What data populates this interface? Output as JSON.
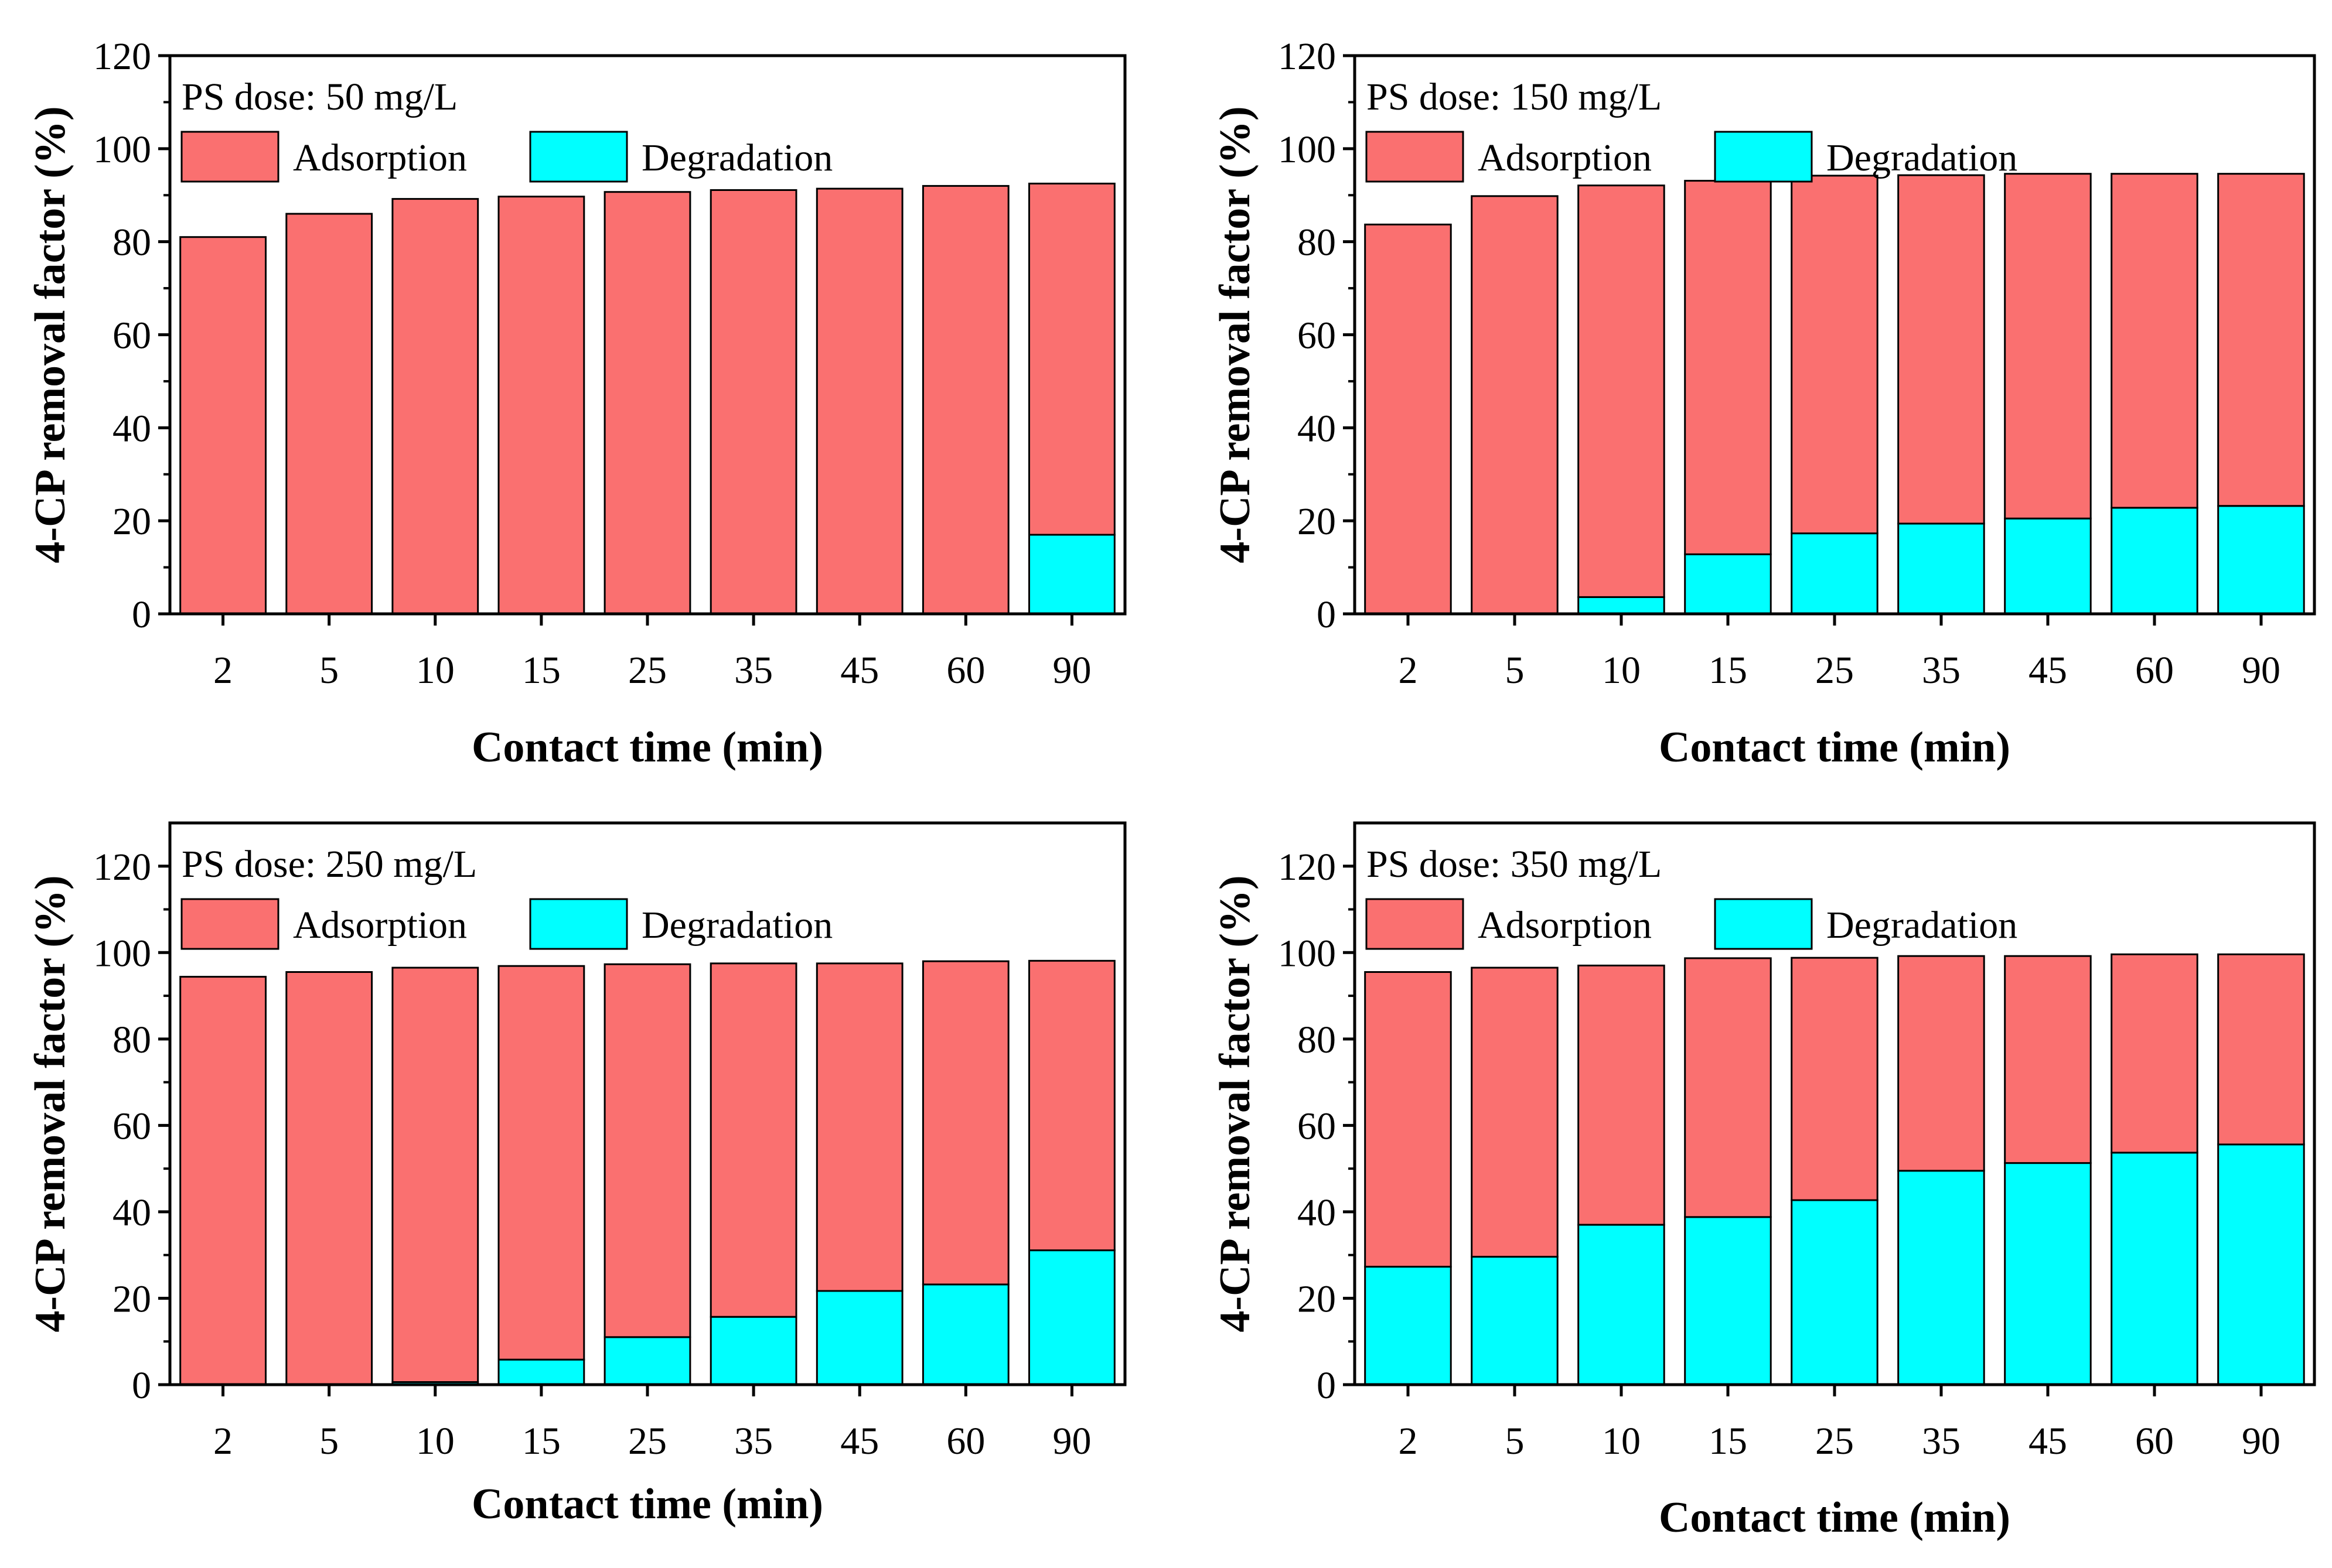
{
  "chart_data": [
    {
      "type": "bar",
      "stacked": true,
      "title": "PS dose: 50 mg/L",
      "xlabel": "Contact time (min)",
      "ylabel": "4-CP removal factor (%)",
      "ylim": [
        0,
        120
      ],
      "yticks": [
        "0",
        "20",
        "40",
        "60",
        "80",
        "100",
        "120"
      ],
      "categories": [
        "2",
        "5",
        "10",
        "15",
        "25",
        "35",
        "45",
        "60",
        "90"
      ],
      "legend": {
        "placement": "top-left",
        "entries": [
          "Adsorption",
          "Degradation"
        ]
      },
      "series": [
        {
          "name": "Degradation",
          "color": "#00ffff",
          "values": [
            0,
            0,
            0,
            0,
            0,
            0,
            0,
            0,
            17
          ]
        },
        {
          "name": "Adsorption",
          "color": "#fa7070",
          "values": [
            81,
            86,
            89.2,
            89.7,
            90.7,
            91.1,
            91.4,
            92,
            75.5
          ]
        }
      ]
    },
    {
      "type": "bar",
      "stacked": true,
      "title": "PS dose: 150 mg/L",
      "xlabel": "Contact time (min)",
      "ylabel": "4-CP removal factor (%)",
      "ylim": [
        0,
        120
      ],
      "yticks": [
        "0",
        "20",
        "40",
        "60",
        "80",
        "100",
        "120"
      ],
      "categories": [
        "2",
        "5",
        "10",
        "15",
        "25",
        "35",
        "45",
        "60",
        "90"
      ],
      "legend": {
        "placement": "top-left",
        "entries": [
          "Adsorption",
          "Degradation"
        ]
      },
      "series": [
        {
          "name": "Degradation",
          "color": "#00ffff",
          "values": [
            0,
            0,
            3.6,
            12.8,
            17.3,
            19.4,
            20.5,
            22.8,
            23.2
          ]
        },
        {
          "name": "Adsorption",
          "color": "#fa7070",
          "values": [
            83.7,
            89.8,
            88.5,
            80.3,
            76.9,
            74.9,
            74.1,
            71.8,
            71.4
          ]
        }
      ]
    },
    {
      "type": "bar",
      "stacked": true,
      "title": "PS dose: 250 mg/L",
      "xlabel": "Contact time (min)",
      "ylabel": "4-CP removal factor (%)",
      "ylim": [
        0,
        130
      ],
      "yticks": [
        "0",
        "20",
        "40",
        "60",
        "80",
        "100",
        "120"
      ],
      "categories": [
        "2",
        "5",
        "10",
        "15",
        "25",
        "35",
        "45",
        "60",
        "90"
      ],
      "legend": {
        "placement": "top-left",
        "entries": [
          "Adsorption",
          "Degradation"
        ]
      },
      "series": [
        {
          "name": "Degradation",
          "color": "#00ffff",
          "values": [
            0,
            0,
            0.6,
            5.8,
            11,
            15.7,
            21.7,
            23.2,
            31.1
          ]
        },
        {
          "name": "Adsorption",
          "color": "#fa7070",
          "values": [
            94.4,
            95.5,
            95.9,
            91.1,
            86.3,
            81.8,
            75.8,
            74.8,
            67
          ]
        }
      ]
    },
    {
      "type": "bar",
      "stacked": true,
      "title": "PS dose: 350 mg/L",
      "xlabel": "Contact time (min)",
      "ylabel": "4-CP removal factor (%)",
      "ylim": [
        0,
        130
      ],
      "yticks": [
        "0",
        "20",
        "40",
        "60",
        "80",
        "100",
        "120"
      ],
      "categories": [
        "2",
        "5",
        "10",
        "15",
        "25",
        "35",
        "45",
        "60",
        "90"
      ],
      "legend": {
        "placement": "top-left",
        "entries": [
          "Adsorption",
          "Degradation"
        ]
      },
      "series": [
        {
          "name": "Degradation",
          "color": "#00ffff",
          "values": [
            27.3,
            29.6,
            37,
            38.8,
            42.7,
            49.5,
            51.3,
            53.7,
            55.6
          ]
        },
        {
          "name": "Adsorption",
          "color": "#fa7070",
          "values": [
            68.2,
            66.9,
            60,
            59.9,
            56.1,
            49.7,
            47.9,
            45.9,
            44
          ]
        }
      ]
    }
  ]
}
